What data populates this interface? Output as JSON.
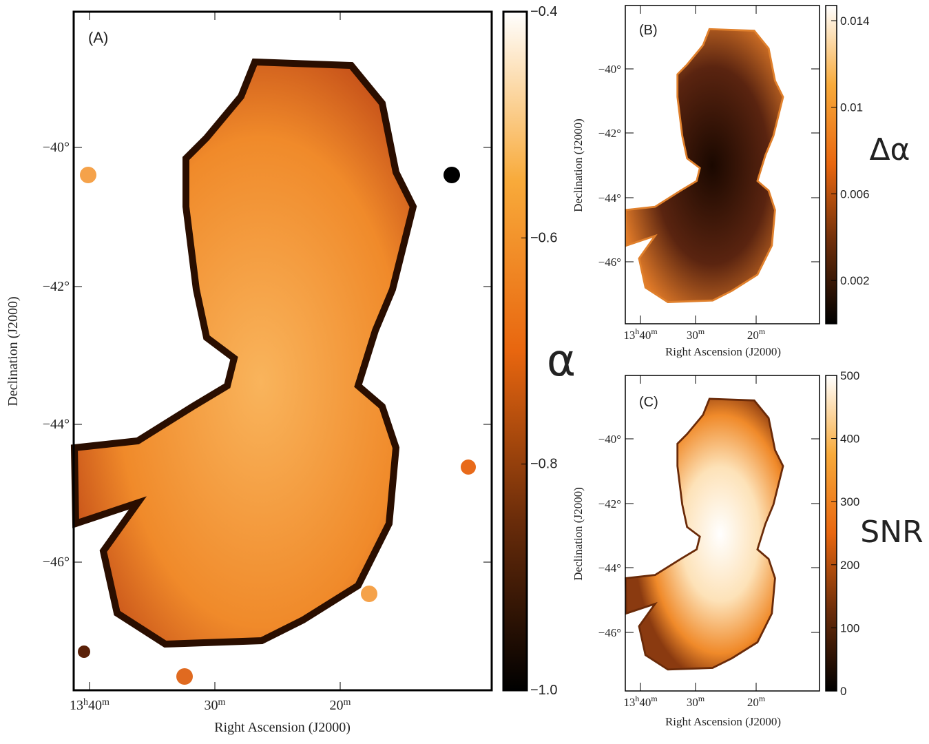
{
  "panels": [
    {
      "label": "(A)",
      "colorbar_label": "α",
      "x_axis_title": "Right Ascension (J2000)",
      "y_axis_title": "Declination (J2000)",
      "ra_ticks": [
        "13h40m",
        "30m",
        "20m"
      ],
      "dec_ticks": [
        "−40°",
        "−42°",
        "−44°",
        "−46°"
      ],
      "colorbar": {
        "lim": [
          -1.0,
          -0.4
        ],
        "ticks": [
          {
            "value": -0.4,
            "label": "−0.4"
          },
          {
            "value": -0.6,
            "label": "−0.6"
          },
          {
            "value": -0.8,
            "label": "−0.8"
          },
          {
            "value": -1.0,
            "label": "−1.0"
          }
        ]
      }
    },
    {
      "label": "(B)",
      "colorbar_label": "Δα",
      "x_axis_title": "Right Ascension (J2000)",
      "y_axis_title": "Declination (J2000)",
      "ra_ticks": [
        "13h40m",
        "30m",
        "20m"
      ],
      "dec_ticks": [
        "−40°",
        "−42°",
        "−44°",
        "−46°"
      ],
      "colorbar": {
        "lim": [
          0,
          0.0147
        ],
        "ticks": [
          0.014,
          0.01,
          0.006,
          0.002
        ]
      }
    },
    {
      "label": "(C)",
      "colorbar_label": "SNR",
      "x_axis_title": "Right Ascension (J2000)",
      "y_axis_title": "Declination (J2000)",
      "ra_ticks": [
        "13h40m",
        "30m",
        "20m"
      ],
      "dec_ticks": [
        "−40°",
        "−42°",
        "−44°",
        "−46°"
      ],
      "colorbar": {
        "lim": [
          0,
          500
        ],
        "ticks": [
          0,
          100,
          200,
          300,
          400,
          500
        ]
      }
    }
  ]
}
